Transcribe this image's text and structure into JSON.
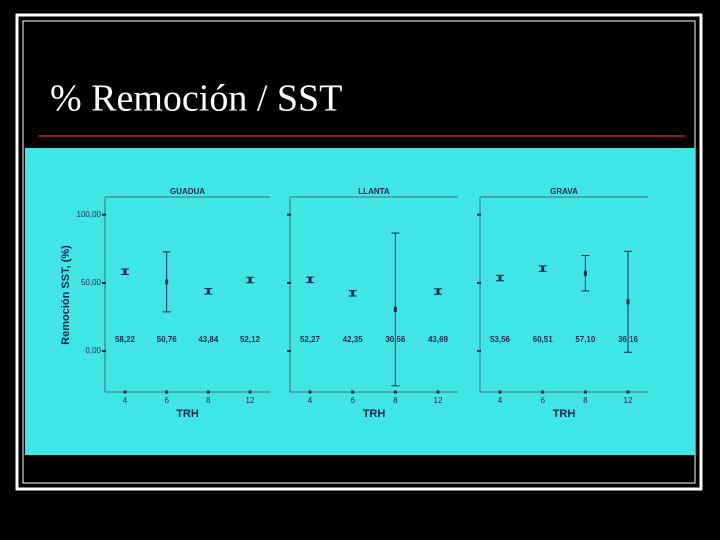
{
  "title": "% Remoción / SST",
  "chart_data": [
    {
      "type": "errorbar",
      "title": "GUADUA",
      "ylabel": "Remoción SST, (%)",
      "xlabel": "TRH",
      "categories": [
        "4",
        "6",
        "8",
        "12"
      ],
      "values": [
        58.22,
        50.76,
        43.84,
        52.12
      ],
      "value_labels": [
        "58,22",
        "50,76",
        "43,84",
        "52,12"
      ],
      "errors": [
        2,
        22,
        2,
        2
      ],
      "color": "#1b2450",
      "ylim": [
        -30,
        113
      ],
      "yticks": [
        {
          "value": 0,
          "label": "0,00"
        },
        {
          "value": 50,
          "label": "50,00"
        },
        {
          "value": 100,
          "label": "100,00"
        }
      ]
    },
    {
      "type": "errorbar",
      "title": "LLANTA",
      "xlabel": "TRH",
      "categories": [
        "4",
        "6",
        "8",
        "12"
      ],
      "values": [
        52.27,
        42.35,
        30.56,
        43.69
      ],
      "value_labels": [
        "52,27",
        "42,35",
        "30,56",
        "43,69"
      ],
      "errors": [
        2,
        2,
        56,
        2
      ],
      "color": "#1b2450",
      "ylim": [
        -30,
        113
      ],
      "yticks": [
        0,
        50,
        100
      ]
    },
    {
      "type": "errorbar",
      "title": "GRAVA",
      "xlabel": "TRH",
      "categories": [
        "4",
        "6",
        "8",
        "12"
      ],
      "values": [
        53.56,
        60.51,
        57.1,
        36.16
      ],
      "value_labels": [
        "53,56",
        "60,51",
        "57,10",
        "36,16"
      ],
      "errors": [
        2,
        2,
        13,
        37
      ],
      "color": "#1b2450",
      "ylim": [
        -30,
        113
      ],
      "yticks": [
        0,
        50,
        100
      ]
    }
  ]
}
